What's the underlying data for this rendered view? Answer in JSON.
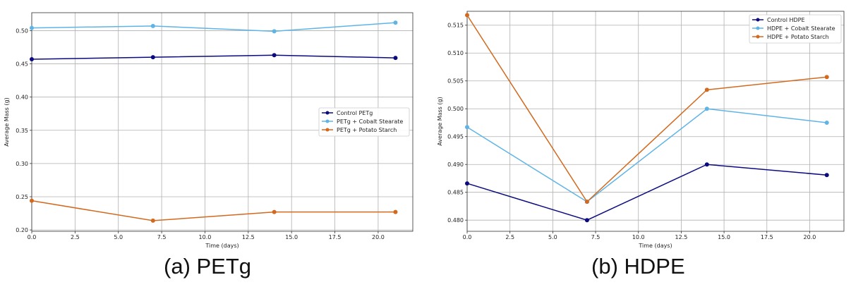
{
  "chart_data": [
    {
      "type": "line",
      "caption": "(a) PETg",
      "xlabel": "Time (days)",
      "ylabel": "Average Mass (g)",
      "xlim": [
        0,
        22
      ],
      "ylim": [
        0.198,
        0.527
      ],
      "xticks": [
        0,
        2.5,
        5,
        7.5,
        10,
        12.5,
        15,
        17.5,
        20
      ],
      "xtick_labels": [
        "0.0",
        "2.5",
        "5.0",
        "7.5",
        "10.0",
        "12.5",
        "15.0",
        "17.5",
        "20.0"
      ],
      "yticks": [
        0.2,
        0.25,
        0.3,
        0.35,
        0.4,
        0.45,
        0.5
      ],
      "ytick_labels": [
        "0.20",
        "0.25",
        "0.30",
        "0.35",
        "0.40",
        "0.45",
        "0.50"
      ],
      "grid": true,
      "legend_position": "center-right",
      "series": [
        {
          "name": "Control PETg",
          "color": "#0b0b80",
          "x": [
            0,
            7,
            14,
            21
          ],
          "y": [
            0.457,
            0.46,
            0.463,
            0.459
          ]
        },
        {
          "name": "PETg + Cobalt Stearate",
          "color": "#5fb4e6",
          "x": [
            0,
            7,
            14,
            21
          ],
          "y": [
            0.504,
            0.507,
            0.499,
            0.512
          ]
        },
        {
          "name": "PETg + Potato Starch",
          "color": "#d2691e",
          "x": [
            0,
            7,
            14,
            21
          ],
          "y": [
            0.244,
            0.214,
            0.227,
            0.227
          ]
        }
      ]
    },
    {
      "type": "line",
      "caption": "(b) HDPE",
      "xlabel": "Time (days)",
      "ylabel": "Average Mass (g)",
      "xlim": [
        0,
        22
      ],
      "ylim": [
        0.478,
        0.5175
      ],
      "xticks": [
        0,
        2.5,
        5,
        7.5,
        10,
        12.5,
        15,
        17.5,
        20
      ],
      "xtick_labels": [
        "0.0",
        "2.5",
        "5.0",
        "7.5",
        "10.0",
        "12.5",
        "15.0",
        "17.5",
        "20.0"
      ],
      "yticks": [
        0.48,
        0.485,
        0.49,
        0.495,
        0.5,
        0.505,
        0.51,
        0.515
      ],
      "ytick_labels": [
        "0.480",
        "0.485",
        "0.490",
        "0.495",
        "0.500",
        "0.505",
        "0.510",
        "0.515"
      ],
      "grid": true,
      "legend_position": "top-right",
      "series": [
        {
          "name": "Control HDPE",
          "color": "#0b0b80",
          "x": [
            0,
            7,
            14,
            21
          ],
          "y": [
            0.4866,
            0.48,
            0.49,
            0.4881
          ]
        },
        {
          "name": "HDPE + Cobalt Stearate",
          "color": "#5fb4e6",
          "x": [
            0,
            7,
            14,
            21
          ],
          "y": [
            0.4967,
            0.4833,
            0.5,
            0.4975
          ]
        },
        {
          "name": "HDPE + Potato Starch",
          "color": "#d2691e",
          "x": [
            0,
            7,
            14,
            21
          ],
          "y": [
            0.5168,
            0.4833,
            0.5034,
            0.5057
          ]
        }
      ]
    }
  ]
}
